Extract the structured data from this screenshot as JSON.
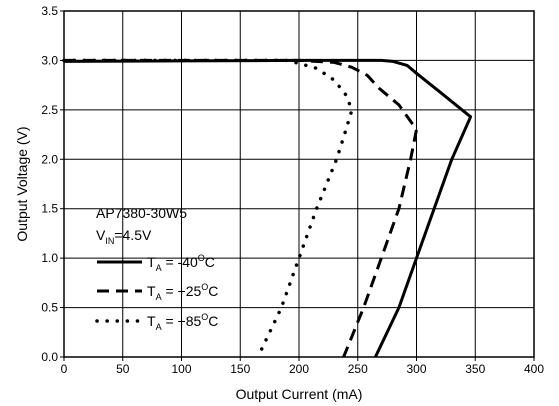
{
  "chart_data": {
    "type": "line",
    "xlabel": "Output Current (mA)",
    "ylabel": "Output Voltage (V)",
    "xlim": [
      0,
      400
    ],
    "ylim": [
      0,
      3.5
    ],
    "xticks": [
      0,
      50,
      100,
      150,
      200,
      250,
      300,
      350,
      400
    ],
    "yticks": [
      0.0,
      0.5,
      1.0,
      1.5,
      2.0,
      2.5,
      3.0,
      3.5
    ],
    "xtick_labels": [
      "0",
      "50",
      "100",
      "150",
      "200",
      "250",
      "300",
      "350",
      "400"
    ],
    "ytick_labels": [
      "0.0",
      "0.5",
      "1.0",
      "1.5",
      "2.0",
      "2.5",
      "3.0",
      "3.5"
    ],
    "grid": true,
    "annotation": {
      "device": "AP7380-30W5",
      "vin_main": "V",
      "vin_sub": "IN",
      "vin_value": "=4.5V"
    },
    "series": [
      {
        "label_main": "T",
        "label_sub": "A",
        "label_value": " = -40",
        "label_sup": "O",
        "label_unit": "C",
        "style": "solid",
        "points": [
          [
            0,
            2.99
          ],
          [
            100,
            2.995
          ],
          [
            200,
            3.0
          ],
          [
            270,
            3.0
          ],
          [
            280,
            2.99
          ],
          [
            292,
            2.95
          ],
          [
            300,
            2.87
          ],
          [
            320,
            2.68
          ],
          [
            346,
            2.43
          ],
          [
            330,
            2.0
          ],
          [
            315,
            1.5
          ],
          [
            300,
            1.0
          ],
          [
            285,
            0.5
          ],
          [
            265,
            0.0
          ]
        ]
      },
      {
        "label_main": "T",
        "label_sub": "A",
        "label_value": " = +25",
        "label_sup": "O",
        "label_unit": "C",
        "style": "dashed",
        "points": [
          [
            0,
            3.0
          ],
          [
            100,
            3.0
          ],
          [
            200,
            3.0
          ],
          [
            230,
            2.98
          ],
          [
            245,
            2.93
          ],
          [
            258,
            2.85
          ],
          [
            268,
            2.72
          ],
          [
            285,
            2.55
          ],
          [
            300,
            2.3
          ],
          [
            295,
            2.0
          ],
          [
            285,
            1.5
          ],
          [
            270,
            1.0
          ],
          [
            255,
            0.5
          ],
          [
            238,
            0.0
          ]
        ]
      },
      {
        "label_main": "T",
        "label_sub": "A",
        "label_value": " = +85",
        "label_sup": "O",
        "label_unit": "C",
        "style": "dotted",
        "points": [
          [
            0,
            3.0
          ],
          [
            100,
            3.0
          ],
          [
            190,
            3.0
          ],
          [
            200,
            2.97
          ],
          [
            215,
            2.92
          ],
          [
            230,
            2.8
          ],
          [
            240,
            2.65
          ],
          [
            245,
            2.5
          ],
          [
            240,
            2.3
          ],
          [
            232,
            2.0
          ],
          [
            215,
            1.5
          ],
          [
            200,
            1.0
          ],
          [
            185,
            0.5
          ],
          [
            165,
            0.0
          ]
        ]
      }
    ]
  }
}
